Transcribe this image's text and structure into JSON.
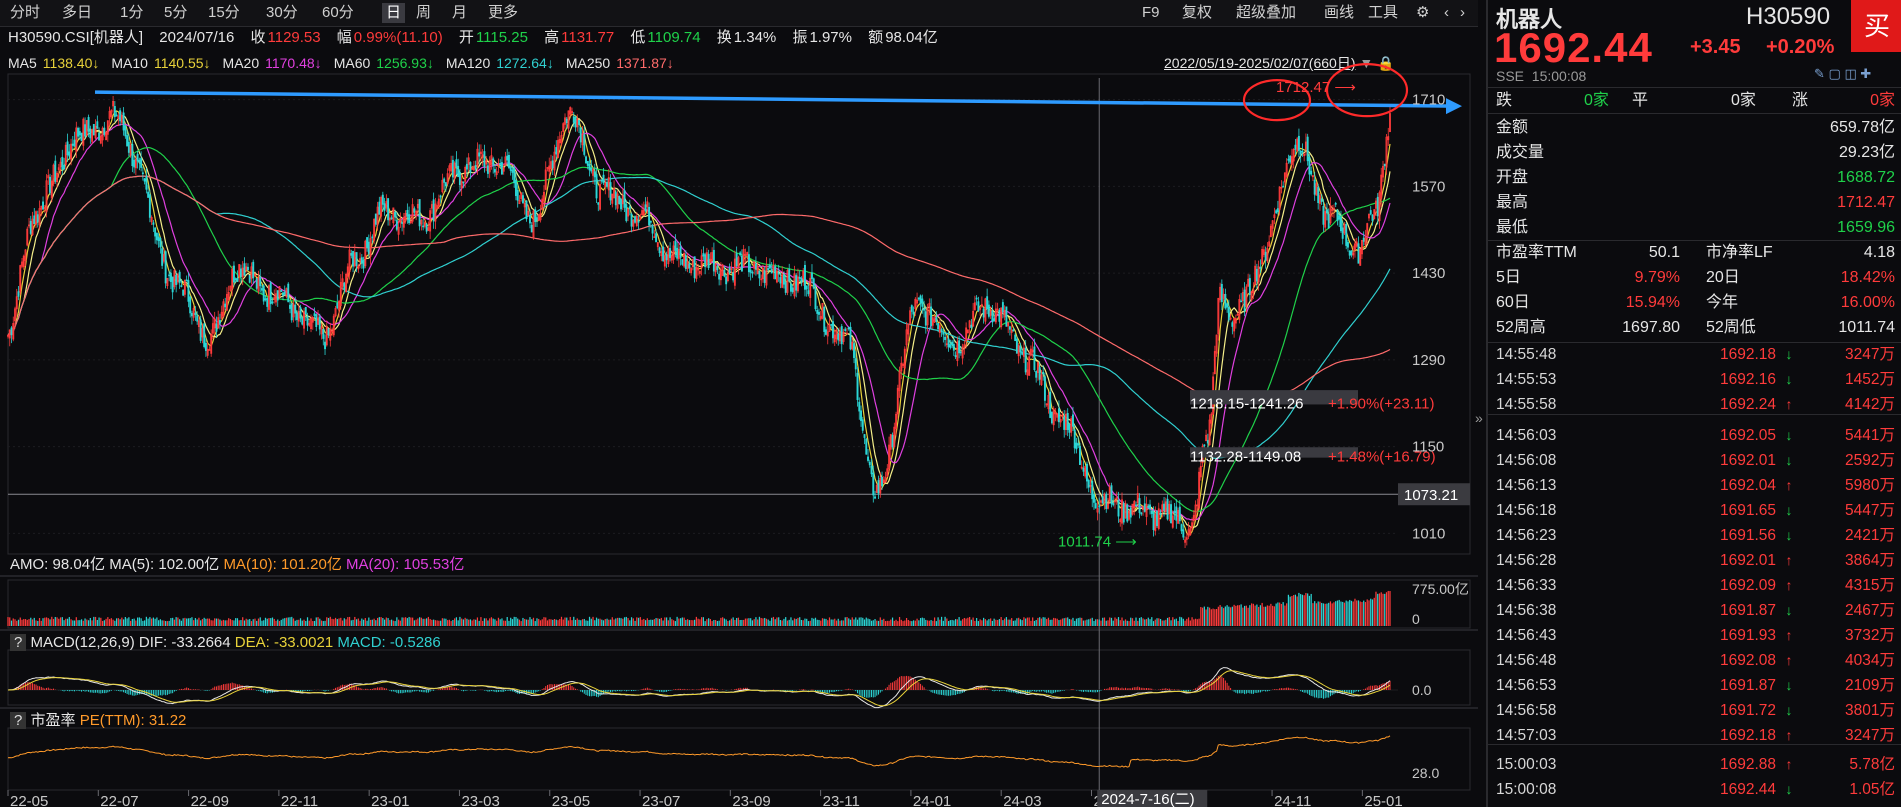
{
  "toolbar": {
    "left_items": [
      "分时",
      "多日",
      "1分",
      "5分",
      "15分",
      "30分",
      "60分",
      "日",
      "周",
      "月",
      "更多"
    ],
    "active": "日",
    "right_items": [
      "F9",
      "复权",
      "超级叠加",
      "画线",
      "工具"
    ]
  },
  "info": {
    "code": "H30590.CSI[机器人]",
    "date": "2024/07/16",
    "close_label": "收",
    "close": "1129.53",
    "change_label": "幅",
    "change": "0.99%(11.10)",
    "open_label": "开",
    "open": "1115.25",
    "high_label": "高",
    "high": "1131.77",
    "low_label": "低",
    "low": "1109.74",
    "turnover_label": "换",
    "turnover": "1.34%",
    "amplitude_label": "振",
    "amplitude": "1.97%",
    "amount_label": "额",
    "amount": "98.04亿",
    "date_range": "2022/05/19-2025/02/07(660日)"
  },
  "ma": [
    {
      "label": "MA5",
      "value": "1138.40↓",
      "color": "#e8d23a"
    },
    {
      "label": "MA10",
      "value": "1140.55↓",
      "color": "#e8d23a"
    },
    {
      "label": "MA20",
      "value": "1170.48↓",
      "color": "#e040e0"
    },
    {
      "label": "MA60",
      "value": "1256.93↓",
      "color": "#1fd14a"
    },
    {
      "label": "MA120",
      "value": "1272.64↓",
      "color": "#30d0d0"
    },
    {
      "label": "MA250",
      "value": "1371.87↓",
      "color": "#ff6b6b"
    }
  ],
  "price_axis": {
    "ticks": [
      1710,
      1570,
      1430,
      1290,
      1150,
      1010
    ],
    "range": [
      980,
      1745
    ],
    "crosshair_label": "1073.21",
    "crosshair_value": 1073.21
  },
  "annotations": {
    "high_label": "1712.47",
    "low_label": "1011.74",
    "gap1_text": "1218.15-1241.26",
    "gap1_pct": "+1.90%(+23.11)",
    "gap2_text": "1132.28-1149.08",
    "gap2_pct": "+1.48%(+16.79)",
    "trend_line_level": 1712.47
  },
  "volume_panel": {
    "title": "AMO: 98.04亿",
    "ma5": "MA(5): 102.00亿",
    "ma10": "MA(10): 101.20亿",
    "ma20": "MA(20): 105.53亿",
    "axis_top": "775.00亿",
    "axis_zero": "0"
  },
  "macd_panel": {
    "help": "?",
    "title": "MACD(12,26,9)",
    "dif": "DIF: -33.2664",
    "dea": "DEA: -33.0021",
    "macd": "MACD: -0.5286",
    "axis_zero": "0.0"
  },
  "pe_panel": {
    "help": "?",
    "title": "市盈率",
    "pe": "PE(TTM): 31.22",
    "axis_label": "28.0"
  },
  "x_axis": {
    "labels": [
      "22-05",
      "22-07",
      "22-09",
      "22-11",
      "23-01",
      "23-03",
      "23-05",
      "23-07",
      "23-09",
      "23-11",
      "24-01",
      "24-03",
      "24-05",
      "24",
      "24-11",
      "25-01"
    ],
    "crosshair_date": "2024-7-16(二)"
  },
  "chart_data": {
    "type": "candlestick",
    "x_range": [
      "2022/05/19",
      "2025/02/07"
    ],
    "trading_days": 660,
    "y_range": [
      980,
      1745
    ],
    "anchors": [
      {
        "d": 0,
        "v": 1330
      },
      {
        "d": 15,
        "v": 1530
      },
      {
        "d": 40,
        "v": 1650
      },
      {
        "d": 60,
        "v": 1680
      },
      {
        "d": 100,
        "v": 1400
      },
      {
        "d": 115,
        "v": 1320
      },
      {
        "d": 130,
        "v": 1440
      },
      {
        "d": 150,
        "v": 1400
      },
      {
        "d": 180,
        "v": 1330
      },
      {
        "d": 200,
        "v": 1460
      },
      {
        "d": 215,
        "v": 1530
      },
      {
        "d": 235,
        "v": 1520
      },
      {
        "d": 260,
        "v": 1600
      },
      {
        "d": 280,
        "v": 1610
      },
      {
        "d": 300,
        "v": 1520
      },
      {
        "d": 320,
        "v": 1690
      },
      {
        "d": 340,
        "v": 1560
      },
      {
        "d": 365,
        "v": 1520
      },
      {
        "d": 380,
        "v": 1450
      },
      {
        "d": 420,
        "v": 1440
      },
      {
        "d": 450,
        "v": 1420
      },
      {
        "d": 480,
        "v": 1320
      },
      {
        "d": 495,
        "v": 1070
      },
      {
        "d": 520,
        "v": 1380
      },
      {
        "d": 540,
        "v": 1320
      },
      {
        "d": 560,
        "v": 1380
      },
      {
        "d": 580,
        "v": 1300
      },
      {
        "d": 600,
        "v": 1200
      },
      {
        "d": 625,
        "v": 1060
      },
      {
        "d": 660,
        "v": 1040
      },
      {
        "d": 675,
        "v": 1020
      },
      {
        "d": 685,
        "v": 1160
      },
      {
        "d": 692,
        "v": 1400
      },
      {
        "d": 700,
        "v": 1350
      },
      {
        "d": 715,
        "v": 1450
      },
      {
        "d": 735,
        "v": 1640
      },
      {
        "d": 755,
        "v": 1520
      },
      {
        "d": 770,
        "v": 1470
      },
      {
        "d": 780,
        "v": 1520
      },
      {
        "d": 790,
        "v": 1692.44
      }
    ],
    "series": [
      {
        "name": "MA5",
        "color": "#e8d23a",
        "window": 5
      },
      {
        "name": "MA10",
        "color": "#f5ef8a",
        "window": 10
      },
      {
        "name": "MA20",
        "color": "#e040e0",
        "window": 20
      },
      {
        "name": "MA60",
        "color": "#1fd14a",
        "window": 60
      },
      {
        "name": "MA120",
        "color": "#30d0d0",
        "window": 120
      },
      {
        "name": "MA250",
        "color": "#ff6b6b",
        "window": 250
      }
    ]
  },
  "quote": {
    "name": "机器人",
    "code": "H30590",
    "price": "1692.44",
    "change": "+3.45",
    "change_pct": "+0.20%",
    "exchange": "SSE",
    "time": "15:00:08",
    "buy_label": "买",
    "breadth": {
      "down_label": "跌",
      "down": "0家",
      "flat_label": "平",
      "flat": "0家",
      "up_label": "涨",
      "up": "0家"
    },
    "stats": [
      {
        "label": "金额",
        "value": "659.78亿",
        "color": "#e6e6e6"
      },
      {
        "label": "成交量",
        "value": "29.23亿",
        "color": "#e6e6e6"
      },
      {
        "label": "开盘",
        "value": "1688.72",
        "color": "#1fd14a"
      },
      {
        "label": "最高",
        "value": "1712.47",
        "color": "#ff3b3b"
      },
      {
        "label": "最低",
        "value": "1659.96",
        "color": "#1fd14a"
      }
    ],
    "pairs": [
      {
        "l1": "市盈率TTM",
        "v1": "50.1",
        "c1": "#e6e6e6",
        "l2": "市净率LF",
        "v2": "4.18",
        "c2": "#e6e6e6"
      },
      {
        "l1": "5日",
        "v1": "9.79%",
        "c1": "#ff3b3b",
        "l2": "20日",
        "v2": "18.42%",
        "c2": "#ff3b3b"
      },
      {
        "l1": "60日",
        "v1": "15.94%",
        "c1": "#ff3b3b",
        "l2": "今年",
        "v2": "16.00%",
        "c2": "#ff3b3b"
      },
      {
        "l1": "52周高",
        "v1": "1697.80",
        "c1": "#e6e6e6",
        "l2": "52周低",
        "v2": "1011.74",
        "c2": "#e6e6e6"
      }
    ],
    "ticks": [
      {
        "t": "14:55:48",
        "p": "1692.18",
        "d": "down",
        "v": "3247万"
      },
      {
        "t": "14:55:53",
        "p": "1692.16",
        "d": "down",
        "v": "1452万"
      },
      {
        "t": "14:55:58",
        "p": "1692.24",
        "d": "up",
        "v": "4142万"
      },
      {
        "t": "14:56:03",
        "p": "1692.05",
        "d": "down",
        "v": "5441万"
      },
      {
        "t": "14:56:08",
        "p": "1692.01",
        "d": "down",
        "v": "2592万"
      },
      {
        "t": "14:56:13",
        "p": "1692.04",
        "d": "up",
        "v": "5980万"
      },
      {
        "t": "14:56:18",
        "p": "1691.65",
        "d": "down",
        "v": "5447万"
      },
      {
        "t": "14:56:23",
        "p": "1691.56",
        "d": "down",
        "v": "2421万"
      },
      {
        "t": "14:56:28",
        "p": "1692.01",
        "d": "up",
        "v": "3864万"
      },
      {
        "t": "14:56:33",
        "p": "1692.09",
        "d": "up",
        "v": "4315万"
      },
      {
        "t": "14:56:38",
        "p": "1691.87",
        "d": "down",
        "v": "2467万"
      },
      {
        "t": "14:56:43",
        "p": "1691.93",
        "d": "up",
        "v": "3732万"
      },
      {
        "t": "14:56:48",
        "p": "1692.08",
        "d": "up",
        "v": "4034万"
      },
      {
        "t": "14:56:53",
        "p": "1691.87",
        "d": "down",
        "v": "2109万"
      },
      {
        "t": "14:56:58",
        "p": "1691.72",
        "d": "down",
        "v": "3801万"
      },
      {
        "t": "14:57:03",
        "p": "1692.18",
        "d": "up",
        "v": "3247万"
      },
      {
        "t": "15:00:03",
        "p": "1692.88",
        "d": "up",
        "v": "5.78亿"
      },
      {
        "t": "15:00:08",
        "p": "1692.44",
        "d": "down",
        "v": "1.05亿"
      }
    ]
  }
}
